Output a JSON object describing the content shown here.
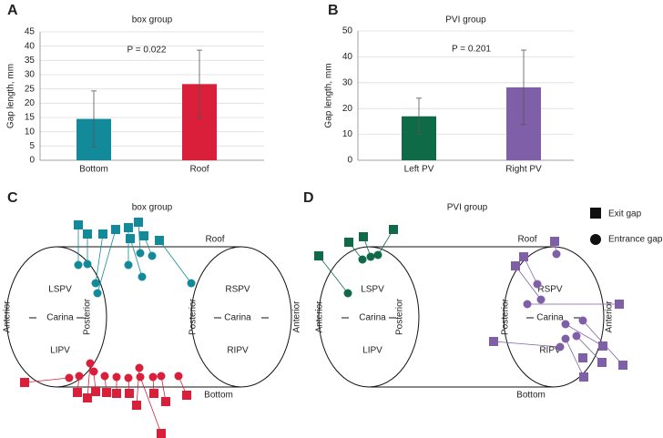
{
  "chart_data": [
    {
      "type": "bar",
      "panel": "A",
      "title": "box group",
      "y_label": "Gap length, mm",
      "annotation": "P = 0.022",
      "categories": [
        "Bottom",
        "Roof"
      ],
      "values": [
        14.5,
        26.7
      ],
      "errors": [
        9.8,
        11.9
      ],
      "colors": [
        "#138a9a",
        "#d91f3a"
      ],
      "ylim": [
        0,
        45
      ],
      "yticks": [
        0,
        5,
        10,
        15,
        20,
        25,
        30,
        35,
        40,
        45
      ],
      "grid": true
    },
    {
      "type": "bar",
      "panel": "B",
      "title": "PVI group",
      "y_label": "Gap length, mm",
      "annotation": "P = 0.201",
      "categories": [
        "Left PV",
        "Right PV"
      ],
      "values": [
        17.0,
        28.2
      ],
      "errors": [
        7.0,
        14.4
      ],
      "colors": [
        "#0f6b47",
        "#7e5fa8"
      ],
      "ylim": [
        0,
        50
      ],
      "yticks": [
        0,
        10,
        20,
        30,
        40,
        50
      ],
      "grid": true
    }
  ],
  "diagrams": [
    {
      "panel": "C",
      "title": "box group",
      "roof": "Roof",
      "bottom": "Bottom",
      "left": {
        "upper": "LSPV",
        "middle": "Carina",
        "lower": "LIPV",
        "outer": "Anterior",
        "inner": "Posterior"
      },
      "right": {
        "upper": "RSPV",
        "middle": "Carina",
        "lower": "RIPV",
        "outer": "Anterior",
        "inner": "Posterior"
      }
    },
    {
      "panel": "D",
      "title": "PVI group",
      "roof": "Roof",
      "bottom": "Bottom",
      "left": {
        "upper": "LSPV",
        "middle": "Carina",
        "lower": "LIPV",
        "outer": "Anterior",
        "inner": "Posterior"
      },
      "right": {
        "upper": "RSPV",
        "middle": "Carina",
        "lower": "RIPV",
        "outer": "Anterior",
        "inner": "Posterior"
      }
    }
  ],
  "legend": {
    "exit": "Exit gap",
    "entrance": "Entrance gap"
  }
}
